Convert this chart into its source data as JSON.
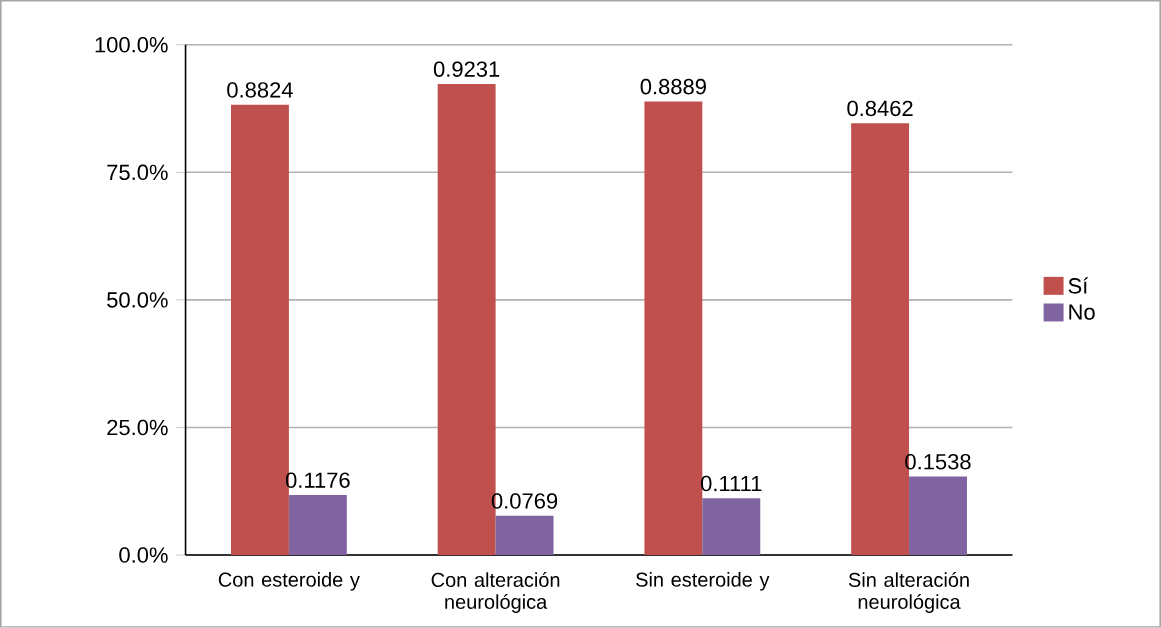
{
  "chart_data": {
    "type": "bar",
    "categories": [
      "Con esteroide y",
      "Con alteración neurológica",
      "Sin esteroide y",
      "Sin alteración neurológica"
    ],
    "series": [
      {
        "name": "Sí",
        "color": "#c0504d",
        "values": [
          0.8824,
          0.9231,
          0.8889,
          0.8462
        ],
        "value_labels": [
          "0.8824",
          "0.9231",
          "0.8889",
          "0.8462"
        ]
      },
      {
        "name": "No",
        "color": "#8064a2",
        "values": [
          0.1176,
          0.0769,
          0.1111,
          0.1538
        ],
        "value_labels": [
          "0.1176",
          "0.0769",
          "0.1111",
          "0.1538"
        ]
      }
    ],
    "ylim": [
      0,
      1
    ],
    "yticks": [
      {
        "value": 0,
        "label": "0.0%"
      },
      {
        "value": 0.25,
        "label": "25.0%"
      },
      {
        "value": 0.5,
        "label": "50.0%"
      },
      {
        "value": 0.75,
        "label": "75.0%"
      },
      {
        "value": 1,
        "label": "100.0%"
      }
    ],
    "grid": "y",
    "legend": "right"
  }
}
